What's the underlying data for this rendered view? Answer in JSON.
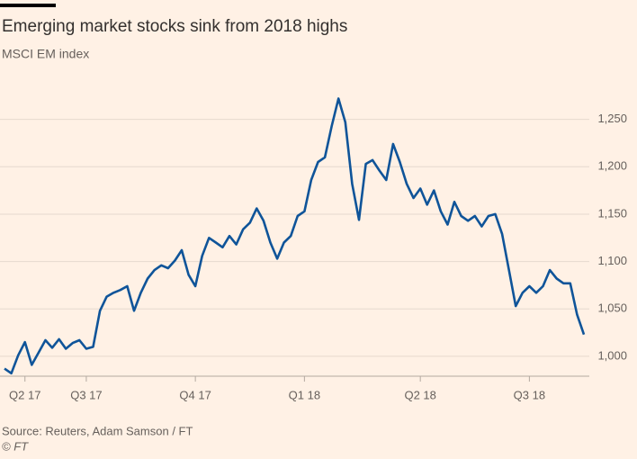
{
  "chart_data": {
    "type": "line",
    "title": "Emerging market stocks sink from 2018 highs",
    "subtitle": "MSCI EM index",
    "source": "Source: Reuters, Adam Samson / FT",
    "credit": "© FT",
    "categories": [
      null,
      null,
      null,
      "Q2 17",
      null,
      null,
      null,
      null,
      null,
      null,
      null,
      null,
      "Q3 17",
      null,
      null,
      null,
      null,
      null,
      null,
      null,
      null,
      null,
      null,
      null,
      null,
      null,
      null,
      null,
      "Q4 17",
      null,
      null,
      null,
      null,
      null,
      null,
      null,
      null,
      null,
      null,
      null,
      null,
      null,
      null,
      null,
      "Q1 18",
      null,
      null,
      null,
      null,
      null,
      null,
      null,
      null,
      null,
      null,
      null,
      null,
      null,
      null,
      null,
      null,
      "Q2 18",
      null,
      null,
      null,
      null,
      null,
      null,
      null,
      null,
      null,
      null,
      null,
      null,
      null,
      null,
      null,
      "Q3 18",
      null,
      null,
      null,
      null,
      null,
      null,
      null,
      null
    ],
    "series": [
      {
        "name": "MSCI EM index",
        "color": "#0f5499",
        "values": [
          987,
          982,
          1001,
          1015,
          991,
          1004,
          1017,
          1009,
          1018,
          1008,
          1014,
          1017,
          1008,
          1010,
          1048,
          1063,
          1067,
          1070,
          1074,
          1048,
          1067,
          1082,
          1091,
          1096,
          1093,
          1101,
          1112,
          1086,
          1074,
          1106,
          1125,
          1120,
          1115,
          1127,
          1118,
          1134,
          1141,
          1156,
          1143,
          1120,
          1103,
          1120,
          1127,
          1148,
          1153,
          1186,
          1205,
          1210,
          1243,
          1272,
          1247,
          1182,
          1144,
          1203,
          1207,
          1196,
          1186,
          1224,
          1205,
          1182,
          1167,
          1177,
          1160,
          1175,
          1153,
          1139,
          1163,
          1148,
          1143,
          1148,
          1137,
          1148,
          1150,
          1129,
          1091,
          1053,
          1067,
          1074,
          1067,
          1074,
          1091,
          1082,
          1077,
          1077,
          1044,
          1023
        ]
      }
    ],
    "ylim": [
      979,
      1300
    ],
    "yticks": [
      {
        "value": 1000,
        "label": "1,000"
      },
      {
        "value": 1050,
        "label": "1,050"
      },
      {
        "value": 1100,
        "label": "1,100"
      },
      {
        "value": 1150,
        "label": "1,150"
      },
      {
        "value": 1200,
        "label": "1,200"
      },
      {
        "value": 1250,
        "label": "1,250"
      }
    ],
    "grid": true
  }
}
